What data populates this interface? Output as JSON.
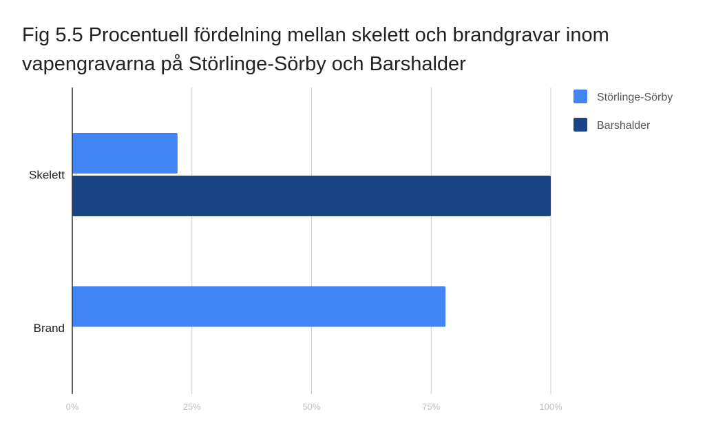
{
  "chart_data": {
    "type": "bar",
    "orientation": "horizontal",
    "title": "Fig 5.5 Procentuell fördelning mellan skelett och brandgravar inom vapengravarna på Störlinge-Sörby och Barshalder",
    "categories": [
      "Skelett",
      "Brand"
    ],
    "series": [
      {
        "name": "Störlinge-Sörby",
        "color": "#4285f4",
        "values": [
          22,
          78
        ]
      },
      {
        "name": "Barshalder",
        "color": "#1c4587",
        "values": [
          100,
          0
        ]
      }
    ],
    "xlim": [
      0,
      100
    ],
    "xticks": [
      0,
      25,
      50,
      75,
      100
    ],
    "xtick_labels": [
      "0%",
      "25%",
      "50%",
      "75%",
      "100%"
    ],
    "grid": true,
    "legend_position": "top-right"
  }
}
